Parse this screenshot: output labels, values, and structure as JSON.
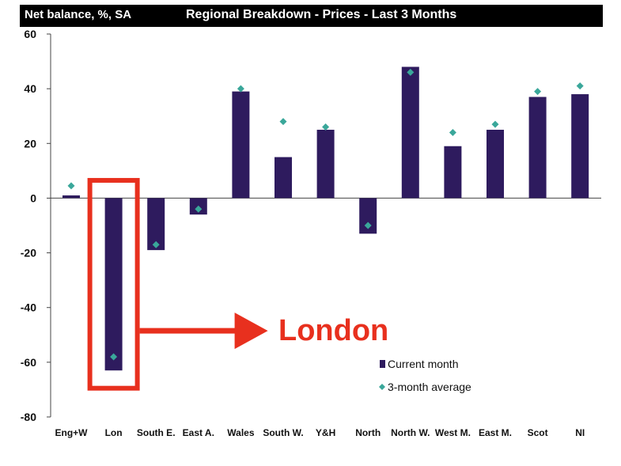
{
  "chart_data": {
    "type": "bar",
    "title": "Regional Breakdown - Prices - Last 3 Months",
    "ylabel": "Net balance, %, SA",
    "xlabel": "",
    "ylim": [
      -80,
      60
    ],
    "yticks": [
      60,
      40,
      20,
      0,
      -20,
      -40,
      -60,
      -80
    ],
    "grid": false,
    "legend_position": "lower-right",
    "categories": [
      "Eng+W",
      "Lon",
      "South E.",
      "East A.",
      "Wales",
      "South W.",
      "Y&H",
      "North",
      "North W.",
      "West M.",
      "East M.",
      "Scot",
      "NI"
    ],
    "series": [
      {
        "name": "Current month",
        "type": "bar",
        "color": "#2e1b5e",
        "values": [
          1,
          -63,
          -19,
          -6,
          39,
          15,
          25,
          -13,
          48,
          19,
          25,
          37,
          38
        ]
      },
      {
        "name": "3-month average",
        "type": "marker",
        "marker": "diamond",
        "color": "#3aa79a",
        "values": [
          4.5,
          -58,
          -17,
          -4,
          40,
          28,
          26,
          -10,
          46,
          24,
          27,
          39,
          41
        ]
      }
    ],
    "annotation": {
      "text": "London",
      "target_category": "Lon",
      "color": "#e8301e"
    }
  }
}
